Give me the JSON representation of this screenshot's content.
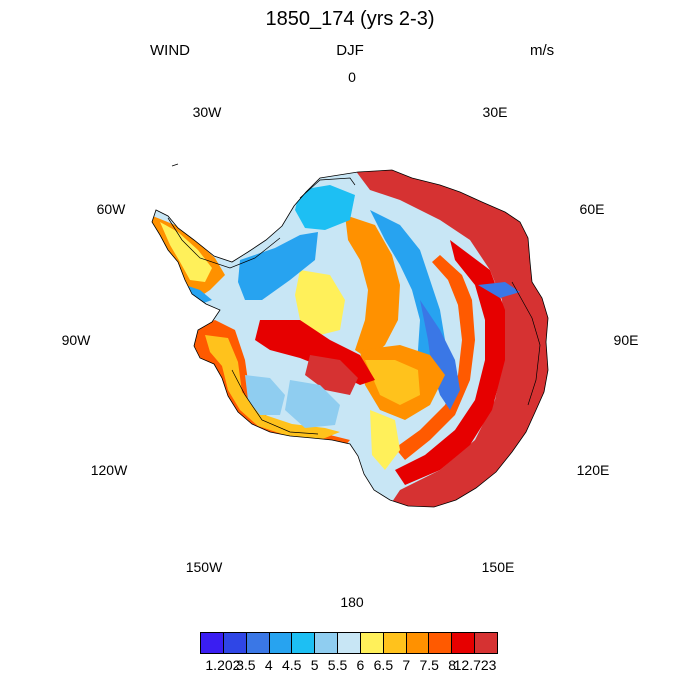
{
  "header": {
    "title": "1850_174 (yrs 2-3)",
    "left_label": "WIND",
    "center_label": "DJF",
    "right_label": "m/s"
  },
  "longitude_labels": [
    "0",
    "30E",
    "60E",
    "90E",
    "120E",
    "150E",
    "180",
    "150W",
    "120W",
    "90W",
    "60W",
    "30W"
  ],
  "colorbar": {
    "colors": [
      "#3a1ef2",
      "#2f46e6",
      "#3a77e6",
      "#27a3f0",
      "#1dbff3",
      "#8fcdf0",
      "#c8e6f5",
      "#fff05a",
      "#ffc21c",
      "#ff9100",
      "#ff5a00",
      "#e60000",
      "#d63232"
    ],
    "labels": [
      "1.202",
      "3.5",
      "4",
      "4.5",
      "5",
      "5.5",
      "6",
      "6.5",
      "7",
      "7.5",
      "8",
      "12.723"
    ]
  }
}
